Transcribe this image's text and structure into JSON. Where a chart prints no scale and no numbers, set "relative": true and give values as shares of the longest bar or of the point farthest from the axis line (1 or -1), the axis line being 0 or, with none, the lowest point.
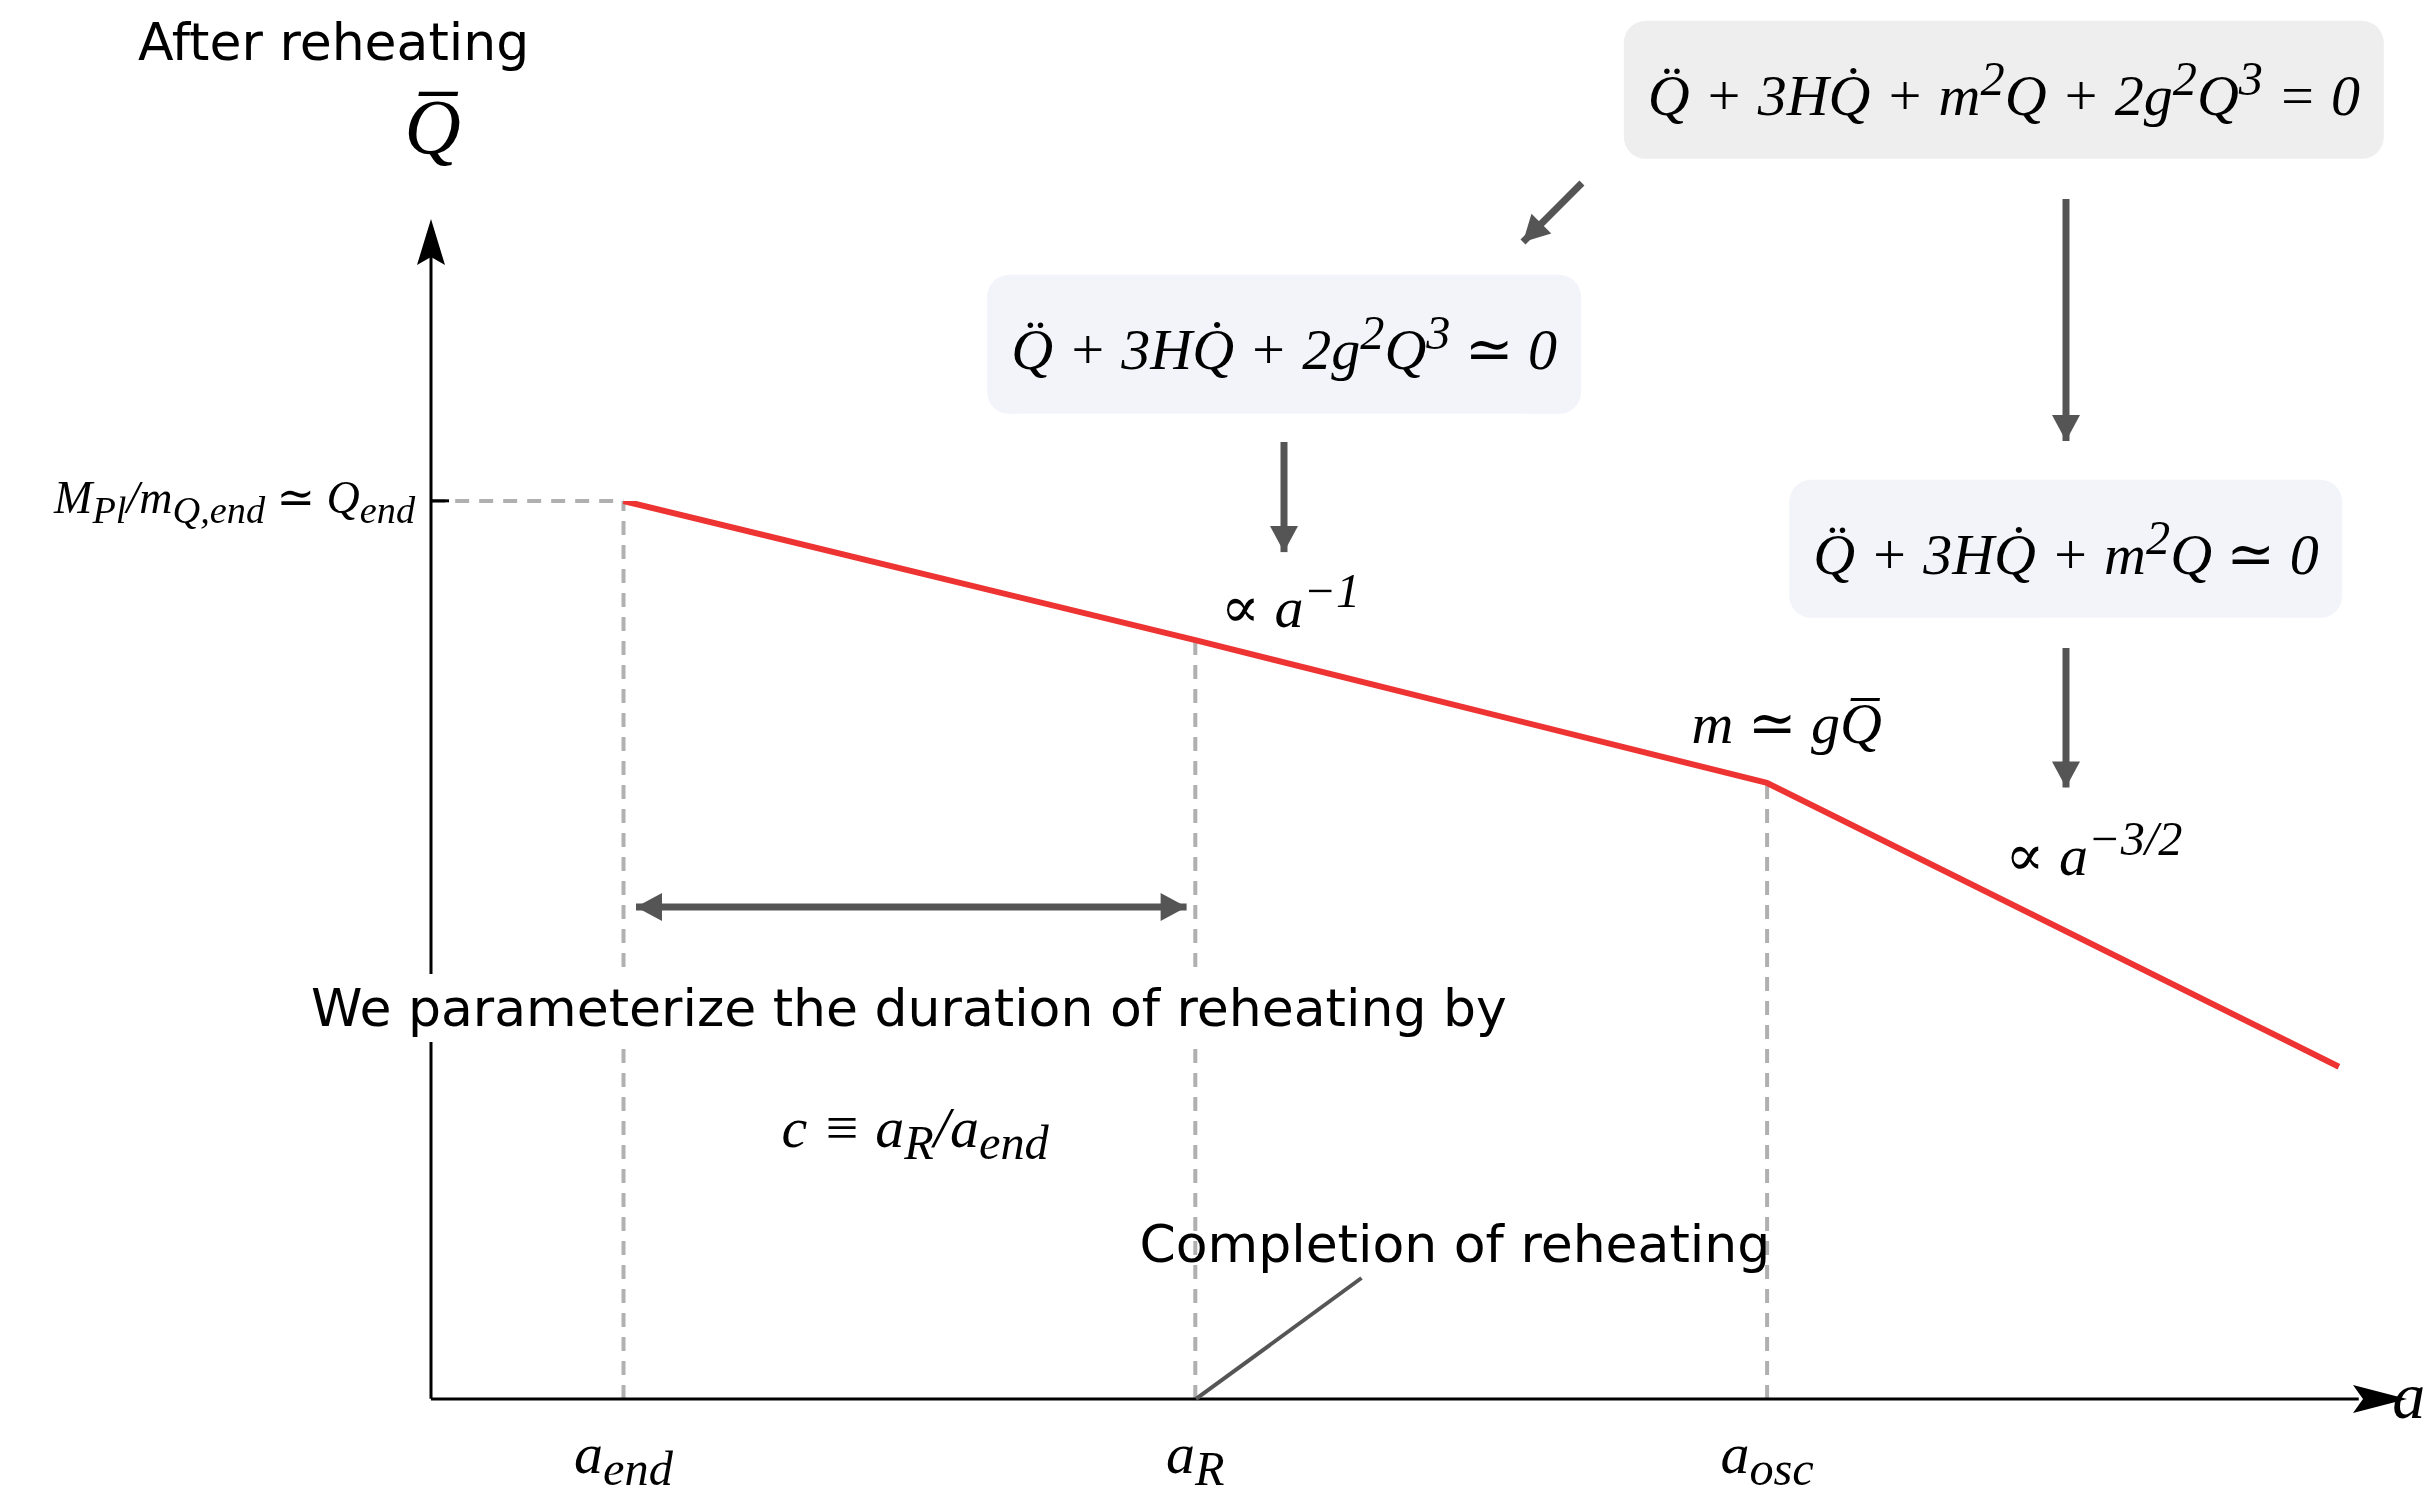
{
  "chart_data": {
    "type": "line",
    "title": "After reheating",
    "xlabel": "a",
    "ylabel": "Q̅",
    "relative": true,
    "marker": "none",
    "line_style": "solid",
    "legend": false,
    "grid": "x",
    "categories": [
      "a$_{end}$",
      "a$_{R}$",
      "a$_{osc}$",
      null
    ],
    "series": [
      {
        "color": "#ee3333",
        "values": [
          1,
          0.845,
          0.686,
          0.37
        ]
      }
    ],
    "ref_lines": [
      {
        "axis": "y",
        "value": 1,
        "color": "#b0b0b0",
        "line_style": "dashed"
      }
    ],
    "annotations": [
      "Q̈ + 3HQ̇ + m$^{2}$Q + 2g$^{2}$Q$^{3}$ = 0",
      "Q̈ + 3HQ̇ + 2g$^{2}$Q$^{3}$ ≃ 0",
      "Q̈ + 3HQ̇ + m$^{2}$Q ≃ 0",
      "∝ a$^{−1}$",
      "m ≃ gQ̅",
      "∝ a$^{−3/2}$",
      "We parameterize the duration of reheating by",
      "c ≡ a$_{R}$/a$_{end}$",
      "Completion of reheating",
      "M$_{Pl}$/m$_{Q,end}$ ≃ Q$_{end}$"
    ]
  }
}
